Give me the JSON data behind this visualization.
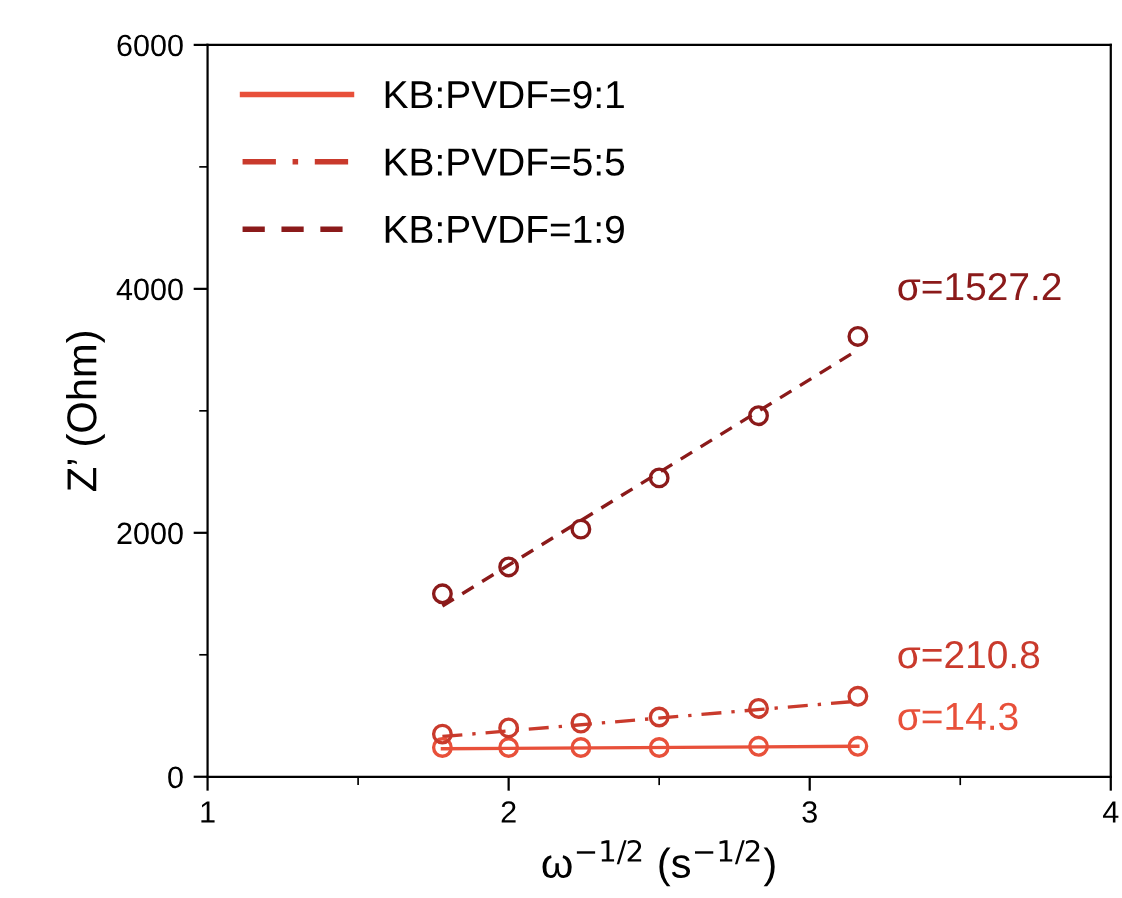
{
  "chart_data": {
    "type": "line",
    "xlabel": "ω$^{−1/2}$ (s$^{−1/2}$)",
    "ylabel": "Z’ (Ohm)",
    "xlim": [
      1,
      4
    ],
    "xticks": [
      1,
      2,
      3,
      4
    ],
    "ylim": [
      0,
      6000
    ],
    "yticks": [
      0,
      2000,
      4000,
      6000
    ],
    "grid": false,
    "legend": "top left",
    "series": [
      {
        "name": "KB:PVDF=9:1",
        "color": "#e8503a",
        "line_style": "solid",
        "marker": "none",
        "x": [
          1.78,
          3.16
        ],
        "values": [
          230,
          250
        ]
      },
      {
        "name": "KB:PVDF=5:5",
        "color": "#c93a2c",
        "line_style": "dashdot",
        "marker": "none",
        "x": [
          1.78,
          3.16
        ],
        "values": [
          330,
          620
        ]
      },
      {
        "name": "KB:PVDF=1:9",
        "color": "#8b1a1a",
        "line_style": "dashed",
        "marker": "none",
        "x": [
          1.78,
          3.16
        ],
        "values": [
          1400,
          3500
        ]
      },
      {
        "type": "scatter",
        "color": "#e8503a",
        "marker": "circle",
        "x": [
          1.78,
          2.0,
          2.24,
          2.5,
          2.83,
          3.16
        ],
        "values": [
          240,
          240,
          240,
          240,
          250,
          250
        ]
      },
      {
        "type": "scatter",
        "color": "#c93a2c",
        "marker": "circle",
        "x": [
          1.78,
          2.0,
          2.24,
          2.5,
          2.83,
          3.16
        ],
        "values": [
          350,
          400,
          440,
          490,
          560,
          660
        ]
      },
      {
        "type": "scatter",
        "color": "#8b1a1a",
        "marker": "circle",
        "x": [
          1.78,
          2.0,
          2.24,
          2.5,
          2.83,
          3.16
        ],
        "values": [
          1500,
          1720,
          2030,
          2450,
          2960,
          3610
        ]
      }
    ],
    "annotations": [
      "σ=14.3",
      "σ=210.8",
      "σ=1527.2"
    ]
  }
}
